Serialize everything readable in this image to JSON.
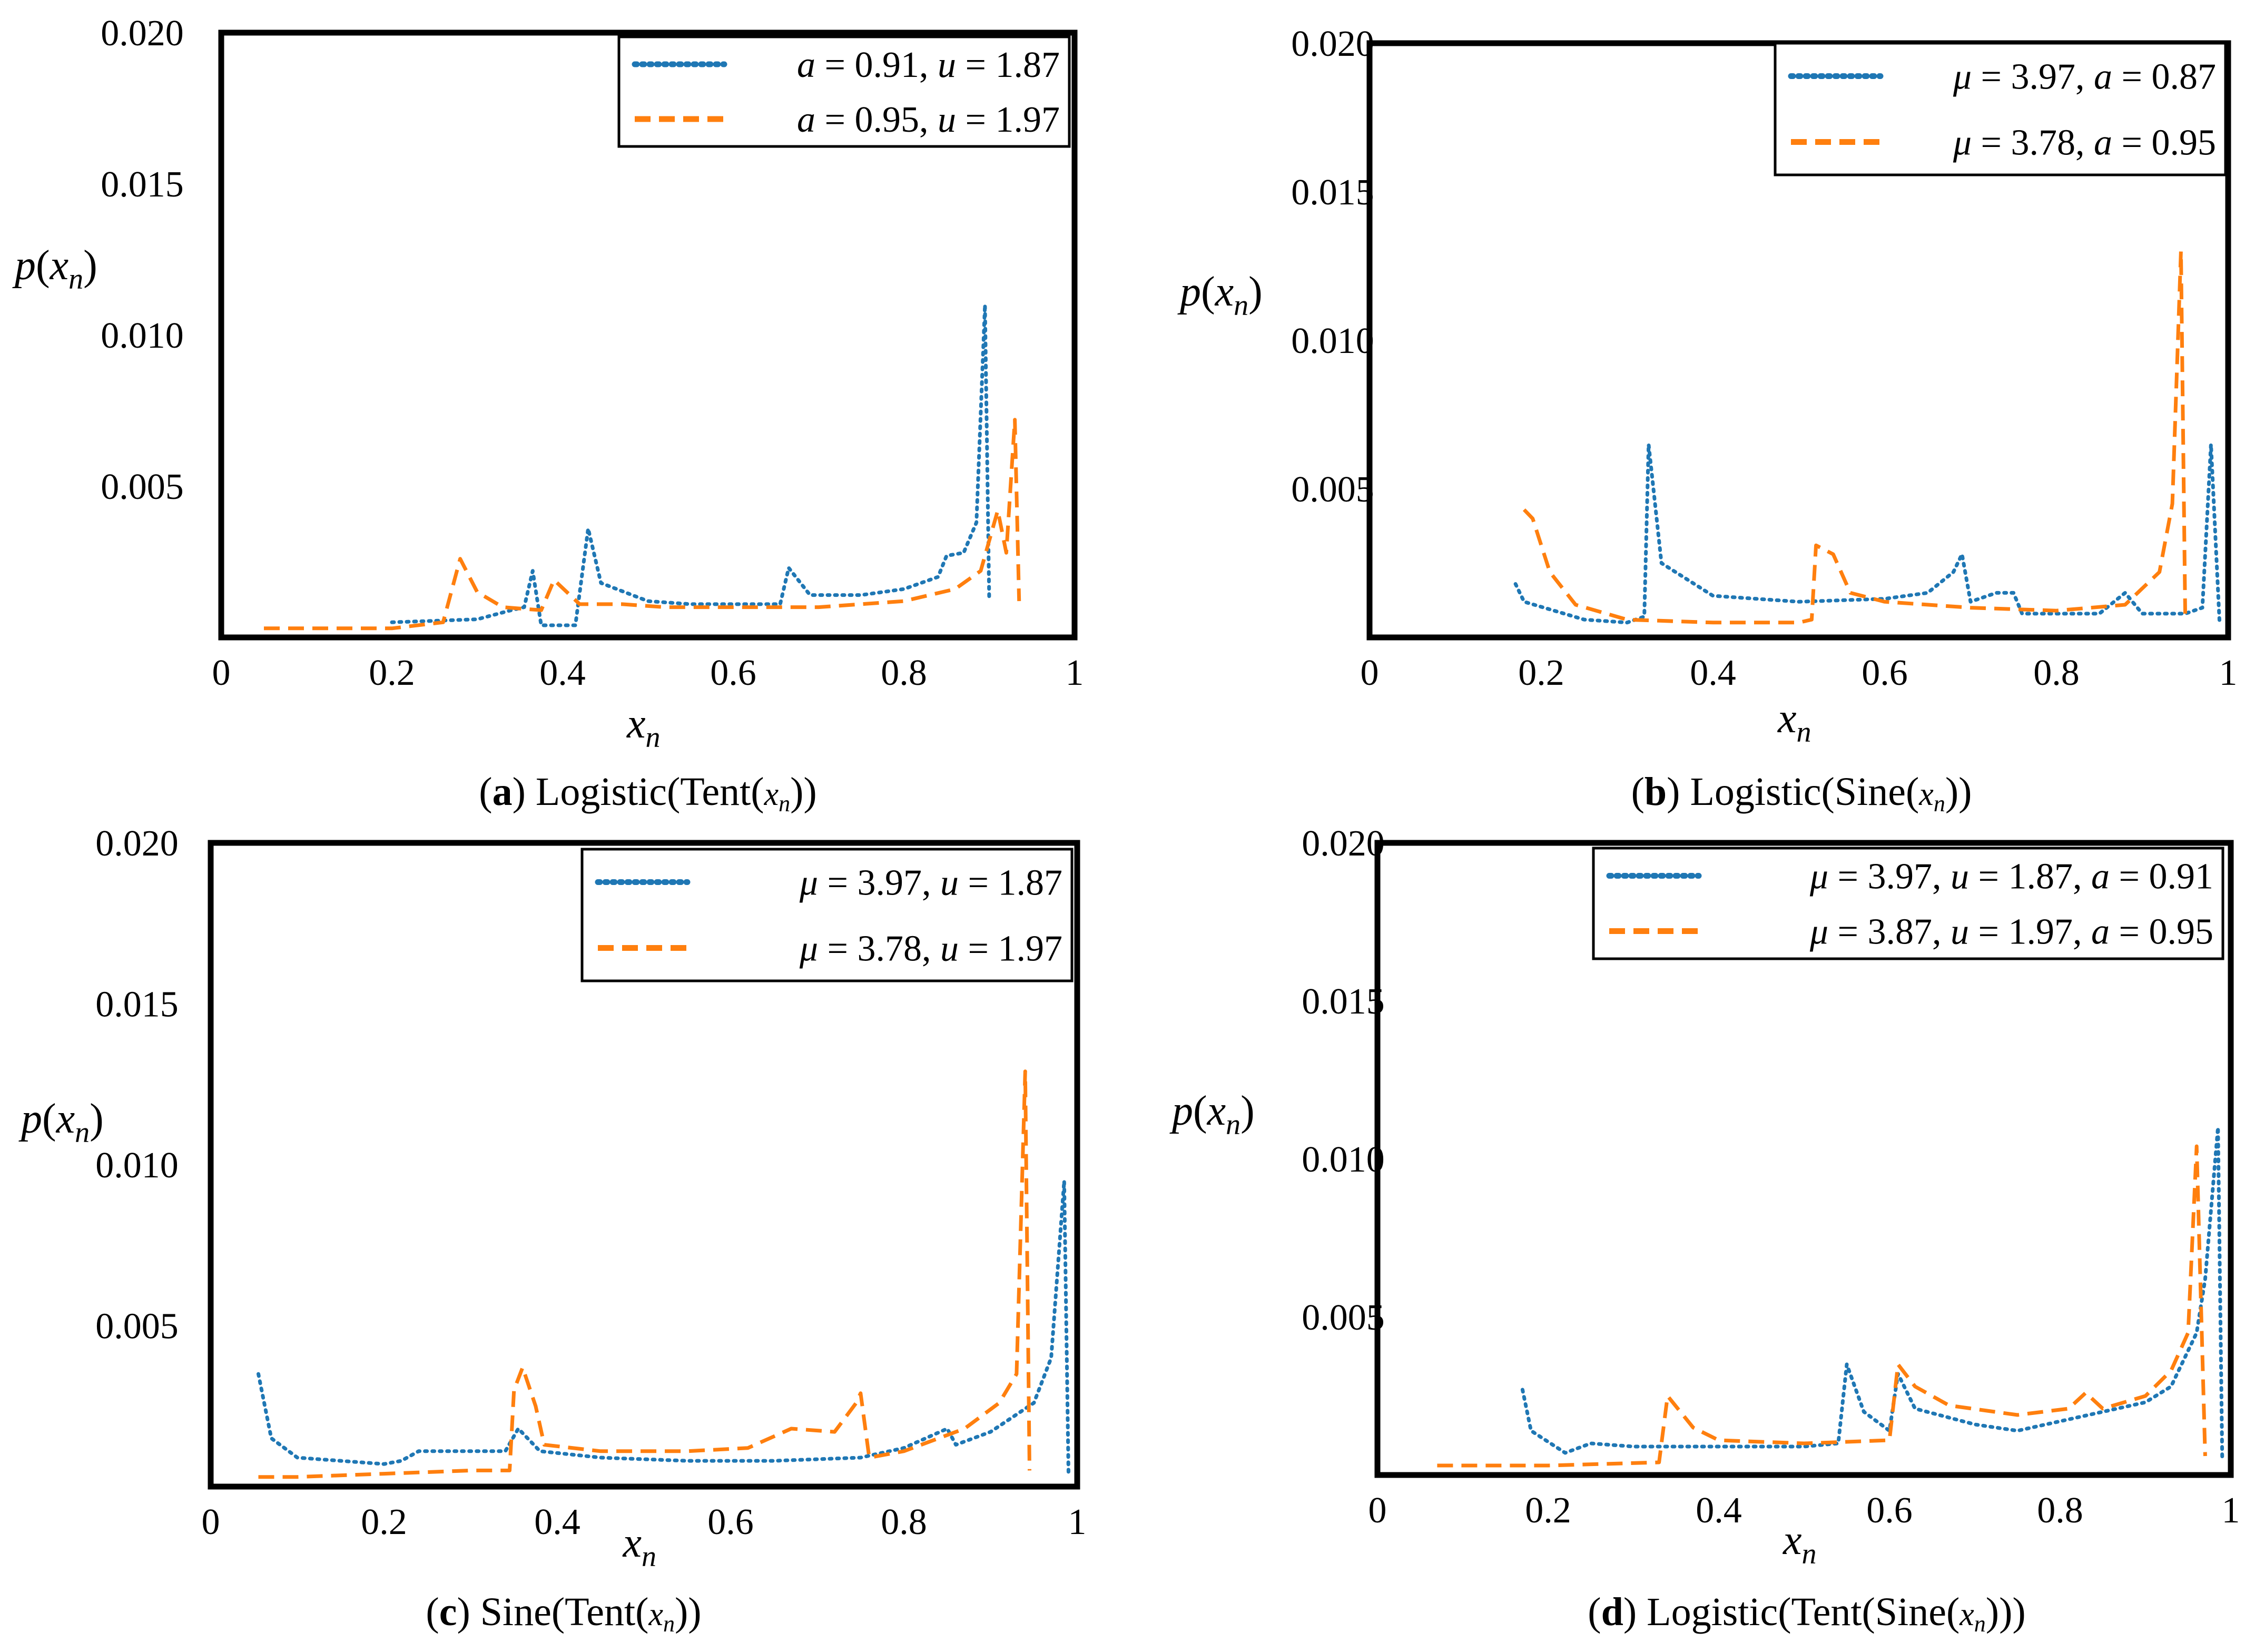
{
  "colors": {
    "blue": "#1f77b4",
    "orange": "#ff7f0e",
    "frame": "#000000"
  },
  "chart_data": [
    {
      "id": "a",
      "type": "line",
      "title": "Logistic(Tent(x_n))",
      "caption": {
        "letter": "a",
        "text": "Logistic(Tent(",
        "var": "x",
        "sub": "n",
        "close": "))"
      },
      "ylabel": {
        "text": "p(x_n)",
        "base": "p(",
        "var": "x",
        "sub": "n",
        "close": ")"
      },
      "xlabel": {
        "text": "x_n",
        "var": "x",
        "sub": "n"
      },
      "xlim": [
        0,
        1
      ],
      "ylim": [
        0,
        0.02
      ],
      "xticks": [
        "0",
        "0.2",
        "0.4",
        "0.6",
        "0.8",
        "1"
      ],
      "xtick_values": [
        0,
        0.2,
        0.4,
        0.6,
        0.8,
        1
      ],
      "yticks": [
        "0.020",
        "0.015",
        "0.010",
        "0.005"
      ],
      "ytick_values": [
        0.02,
        0.015,
        0.01,
        0.005
      ],
      "legend_position": "top-right",
      "series": [
        {
          "name": "a = 0.91, u = 1.87",
          "legend": [
            {
              "v": "a"
            },
            {
              "t": " = 0.91, "
            },
            {
              "v": "u"
            },
            {
              "t": " = 1.87"
            }
          ],
          "style": "dotted",
          "color": "#1f77b4",
          "points": [
            [
              0.2,
              0.0005
            ],
            [
              0.3,
              0.0006
            ],
            [
              0.34,
              0.0009
            ],
            [
              0.355,
              0.001
            ],
            [
              0.365,
              0.0022
            ],
            [
              0.375,
              0.0004
            ],
            [
              0.415,
              0.0004
            ],
            [
              0.43,
              0.0036
            ],
            [
              0.445,
              0.0018
            ],
            [
              0.5,
              0.0012
            ],
            [
              0.55,
              0.0011
            ],
            [
              0.62,
              0.0011
            ],
            [
              0.655,
              0.0011
            ],
            [
              0.665,
              0.0023
            ],
            [
              0.69,
              0.0014
            ],
            [
              0.75,
              0.0014
            ],
            [
              0.8,
              0.0016
            ],
            [
              0.84,
              0.002
            ],
            [
              0.85,
              0.0027
            ],
            [
              0.87,
              0.0028
            ],
            [
              0.885,
              0.0038
            ],
            [
              0.895,
              0.011
            ],
            [
              0.9,
              0.0012
            ]
          ]
        },
        {
          "name": "a = 0.95, u = 1.97",
          "legend": [
            {
              "v": "a"
            },
            {
              "t": " = 0.95, "
            },
            {
              "v": "u"
            },
            {
              "t": " = 1.97"
            }
          ],
          "style": "dashed",
          "color": "#ff7f0e",
          "points": [
            [
              0.05,
              0.0003
            ],
            [
              0.2,
              0.0003
            ],
            [
              0.26,
              0.0005
            ],
            [
              0.28,
              0.0026
            ],
            [
              0.3,
              0.0015
            ],
            [
              0.33,
              0.001
            ],
            [
              0.375,
              0.0009
            ],
            [
              0.39,
              0.0019
            ],
            [
              0.42,
              0.0011
            ],
            [
              0.47,
              0.0011
            ],
            [
              0.52,
              0.001
            ],
            [
              0.6,
              0.001
            ],
            [
              0.7,
              0.001
            ],
            [
              0.8,
              0.0012
            ],
            [
              0.86,
              0.0016
            ],
            [
              0.89,
              0.0022
            ],
            [
              0.91,
              0.0042
            ],
            [
              0.92,
              0.0028
            ],
            [
              0.93,
              0.0072
            ],
            [
              0.935,
              0.0012
            ]
          ]
        }
      ]
    },
    {
      "id": "b",
      "type": "line",
      "title": "Logistic(Sine(x_n))",
      "caption": {
        "letter": "b",
        "text": "Logistic(Sine(",
        "var": "x",
        "sub": "n",
        "close": "))"
      },
      "ylabel": {
        "text": "p(x_n)",
        "base": "p(",
        "var": "x",
        "sub": "n",
        "close": ")"
      },
      "xlabel": {
        "text": "x_n",
        "var": "x",
        "sub": "n"
      },
      "xlim": [
        0,
        1
      ],
      "ylim": [
        0,
        0.02
      ],
      "xticks": [
        "0",
        "0.2",
        "0.4",
        "0.6",
        "0.8",
        "1"
      ],
      "xtick_values": [
        0,
        0.2,
        0.4,
        0.6,
        0.8,
        1
      ],
      "yticks": [
        "0.020",
        "0.015",
        "0.010",
        "0.005"
      ],
      "ytick_values": [
        0.02,
        0.015,
        0.01,
        0.005
      ],
      "legend_position": "top-right",
      "series": [
        {
          "name": "μ = 3.97, a = 0.87",
          "legend": [
            {
              "v": "μ"
            },
            {
              "t": " = 3.97, "
            },
            {
              "v": "a"
            },
            {
              "t": " = 0.87"
            }
          ],
          "style": "dotted",
          "color": "#1f77b4",
          "points": [
            [
              0.17,
              0.0018
            ],
            [
              0.18,
              0.0012
            ],
            [
              0.25,
              0.0006
            ],
            [
              0.3,
              0.0005
            ],
            [
              0.32,
              0.0007
            ],
            [
              0.325,
              0.0065
            ],
            [
              0.34,
              0.0025
            ],
            [
              0.4,
              0.0014
            ],
            [
              0.5,
              0.0012
            ],
            [
              0.6,
              0.0013
            ],
            [
              0.65,
              0.0015
            ],
            [
              0.68,
              0.0022
            ],
            [
              0.69,
              0.0028
            ],
            [
              0.7,
              0.0012
            ],
            [
              0.73,
              0.0015
            ],
            [
              0.75,
              0.0015
            ],
            [
              0.76,
              0.0008
            ],
            [
              0.85,
              0.0008
            ],
            [
              0.88,
              0.0015
            ],
            [
              0.9,
              0.0008
            ],
            [
              0.95,
              0.0008
            ],
            [
              0.97,
              0.001
            ],
            [
              0.98,
              0.0065
            ],
            [
              0.99,
              0.0005
            ]
          ]
        },
        {
          "name": "μ = 3.78, a = 0.95",
          "legend": [
            {
              "v": "μ"
            },
            {
              "t": " = 3.78, "
            },
            {
              "v": "a"
            },
            {
              "t": " = 0.95"
            }
          ],
          "style": "dashed",
          "color": "#ff7f0e",
          "points": [
            [
              0.18,
              0.0043
            ],
            [
              0.19,
              0.004
            ],
            [
              0.21,
              0.0022
            ],
            [
              0.24,
              0.0011
            ],
            [
              0.3,
              0.0006
            ],
            [
              0.4,
              0.0005
            ],
            [
              0.5,
              0.0005
            ],
            [
              0.515,
              0.0006
            ],
            [
              0.52,
              0.0031
            ],
            [
              0.54,
              0.0028
            ],
            [
              0.56,
              0.0015
            ],
            [
              0.6,
              0.0012
            ],
            [
              0.7,
              0.001
            ],
            [
              0.8,
              0.0009
            ],
            [
              0.88,
              0.0011
            ],
            [
              0.92,
              0.0022
            ],
            [
              0.935,
              0.0045
            ],
            [
              0.945,
              0.013
            ],
            [
              0.95,
              0.0008
            ]
          ]
        }
      ]
    },
    {
      "id": "c",
      "type": "line",
      "title": "Sine(Tent(x_n))",
      "caption": {
        "letter": "c",
        "text": "Sine(Tent(",
        "var": "x",
        "sub": "n",
        "close": "))"
      },
      "ylabel": {
        "text": "p(x_n)",
        "base": "p(",
        "var": "x",
        "sub": "n",
        "close": ")"
      },
      "xlabel": {
        "text": "x_n",
        "var": "x",
        "sub": "n"
      },
      "xlim": [
        0,
        1
      ],
      "ylim": [
        0,
        0.02
      ],
      "xticks": [
        "0",
        "0.2",
        "0.4",
        "0.6",
        "0.8",
        "1"
      ],
      "xtick_values": [
        0,
        0.2,
        0.4,
        0.6,
        0.8,
        1
      ],
      "yticks": [
        "0.020",
        "0.015",
        "0.010",
        "0.005"
      ],
      "ytick_values": [
        0.02,
        0.015,
        0.01,
        0.005
      ],
      "legend_position": "top-right",
      "series": [
        {
          "name": "μ = 3.97, u = 1.87",
          "legend": [
            {
              "v": "μ"
            },
            {
              "t": " = 3.97, "
            },
            {
              "v": "u"
            },
            {
              "t": " = 1.87"
            }
          ],
          "style": "dotted",
          "color": "#1f77b4",
          "points": [
            [
              0.055,
              0.0035
            ],
            [
              0.07,
              0.0015
            ],
            [
              0.1,
              0.0009
            ],
            [
              0.2,
              0.0007
            ],
            [
              0.22,
              0.0008
            ],
            [
              0.24,
              0.0011
            ],
            [
              0.3,
              0.0011
            ],
            [
              0.34,
              0.0011
            ],
            [
              0.355,
              0.0018
            ],
            [
              0.38,
              0.0011
            ],
            [
              0.45,
              0.0009
            ],
            [
              0.55,
              0.0008
            ],
            [
              0.65,
              0.0008
            ],
            [
              0.75,
              0.0009
            ],
            [
              0.8,
              0.0012
            ],
            [
              0.85,
              0.0018
            ],
            [
              0.86,
              0.0013
            ],
            [
              0.9,
              0.0017
            ],
            [
              0.95,
              0.0026
            ],
            [
              0.97,
              0.004
            ],
            [
              0.985,
              0.0095
            ],
            [
              0.99,
              0.0004
            ]
          ]
        },
        {
          "name": "μ = 3.78, u = 1.97",
          "legend": [
            {
              "v": "μ"
            },
            {
              "t": " = 3.78, "
            },
            {
              "v": "u"
            },
            {
              "t": " = 1.97"
            }
          ],
          "style": "dashed",
          "color": "#ff7f0e",
          "points": [
            [
              0.055,
              0.0003
            ],
            [
              0.1,
              0.0003
            ],
            [
              0.2,
              0.0004
            ],
            [
              0.3,
              0.0005
            ],
            [
              0.345,
              0.0005
            ],
            [
              0.35,
              0.003
            ],
            [
              0.36,
              0.0037
            ],
            [
              0.375,
              0.0025
            ],
            [
              0.385,
              0.0013
            ],
            [
              0.45,
              0.0011
            ],
            [
              0.55,
              0.0011
            ],
            [
              0.62,
              0.0012
            ],
            [
              0.67,
              0.0018
            ],
            [
              0.72,
              0.0017
            ],
            [
              0.745,
              0.0026
            ],
            [
              0.75,
              0.0029
            ],
            [
              0.76,
              0.0009
            ],
            [
              0.8,
              0.0011
            ],
            [
              0.87,
              0.0018
            ],
            [
              0.91,
              0.0026
            ],
            [
              0.93,
              0.0035
            ],
            [
              0.94,
              0.0129
            ],
            [
              0.945,
              0.0005
            ]
          ]
        }
      ]
    },
    {
      "id": "d",
      "type": "line",
      "title": "Logistic(Tent(Sine(x_n)))",
      "caption": {
        "letter": "d",
        "text": "Logistic(Tent(Sine(",
        "var": "x",
        "sub": "n",
        "close": ")))"
      },
      "ylabel": {
        "text": "p(x_n)",
        "base": "p(",
        "var": "x",
        "sub": "n",
        "close": ")"
      },
      "xlabel": {
        "text": "x_n",
        "var": "x",
        "sub": "n"
      },
      "xlim": [
        0,
        1
      ],
      "ylim": [
        0,
        0.02
      ],
      "xticks": [
        "0",
        "0.2",
        "0.4",
        "0.6",
        "0.8",
        "1"
      ],
      "xtick_values": [
        0,
        0.2,
        0.4,
        0.6,
        0.8,
        1
      ],
      "yticks": [
        "0.020",
        "0.015",
        "0.010",
        "0.005"
      ],
      "ytick_values": [
        0.02,
        0.015,
        0.01,
        0.005
      ],
      "legend_position": "top-right",
      "series": [
        {
          "name": "μ = 3.97, u = 1.87, a = 0.91",
          "legend": [
            {
              "v": "μ"
            },
            {
              "t": " = 3.97, "
            },
            {
              "v": "u"
            },
            {
              "t": " = 1.87, "
            },
            {
              "v": "a"
            },
            {
              "t": " = 0.91"
            }
          ],
          "style": "dotted",
          "color": "#1f77b4",
          "points": [
            [
              0.17,
              0.0027
            ],
            [
              0.18,
              0.0014
            ],
            [
              0.22,
              0.0007
            ],
            [
              0.25,
              0.001
            ],
            [
              0.3,
              0.0009
            ],
            [
              0.4,
              0.0009
            ],
            [
              0.5,
              0.0009
            ],
            [
              0.54,
              0.001
            ],
            [
              0.55,
              0.0035
            ],
            [
              0.57,
              0.002
            ],
            [
              0.6,
              0.0014
            ],
            [
              0.61,
              0.0032
            ],
            [
              0.63,
              0.0021
            ],
            [
              0.7,
              0.0016
            ],
            [
              0.75,
              0.0014
            ],
            [
              0.8,
              0.0017
            ],
            [
              0.85,
              0.002
            ],
            [
              0.9,
              0.0023
            ],
            [
              0.93,
              0.0028
            ],
            [
              0.96,
              0.0045
            ],
            [
              0.97,
              0.0062
            ],
            [
              0.985,
              0.011
            ],
            [
              0.99,
              0.0005
            ]
          ]
        },
        {
          "name": "μ = 3.87, u = 1.97, a = 0.95",
          "legend": [
            {
              "v": "μ"
            },
            {
              "t": " = 3.87, "
            },
            {
              "v": "u"
            },
            {
              "t": " = 1.97, "
            },
            {
              "v": "a"
            },
            {
              "t": " = 0.95"
            }
          ],
          "style": "dashed",
          "color": "#ff7f0e",
          "points": [
            [
              0.07,
              0.0003
            ],
            [
              0.2,
              0.0003
            ],
            [
              0.33,
              0.0004
            ],
            [
              0.34,
              0.0025
            ],
            [
              0.37,
              0.0015
            ],
            [
              0.4,
              0.0011
            ],
            [
              0.5,
              0.001
            ],
            [
              0.6,
              0.0011
            ],
            [
              0.61,
              0.0035
            ],
            [
              0.63,
              0.0028
            ],
            [
              0.67,
              0.0022
            ],
            [
              0.75,
              0.0019
            ],
            [
              0.81,
              0.0021
            ],
            [
              0.83,
              0.0026
            ],
            [
              0.85,
              0.0021
            ],
            [
              0.9,
              0.0025
            ],
            [
              0.93,
              0.0033
            ],
            [
              0.95,
              0.0045
            ],
            [
              0.96,
              0.0104
            ],
            [
              0.97,
              0.0006
            ]
          ]
        }
      ]
    }
  ]
}
